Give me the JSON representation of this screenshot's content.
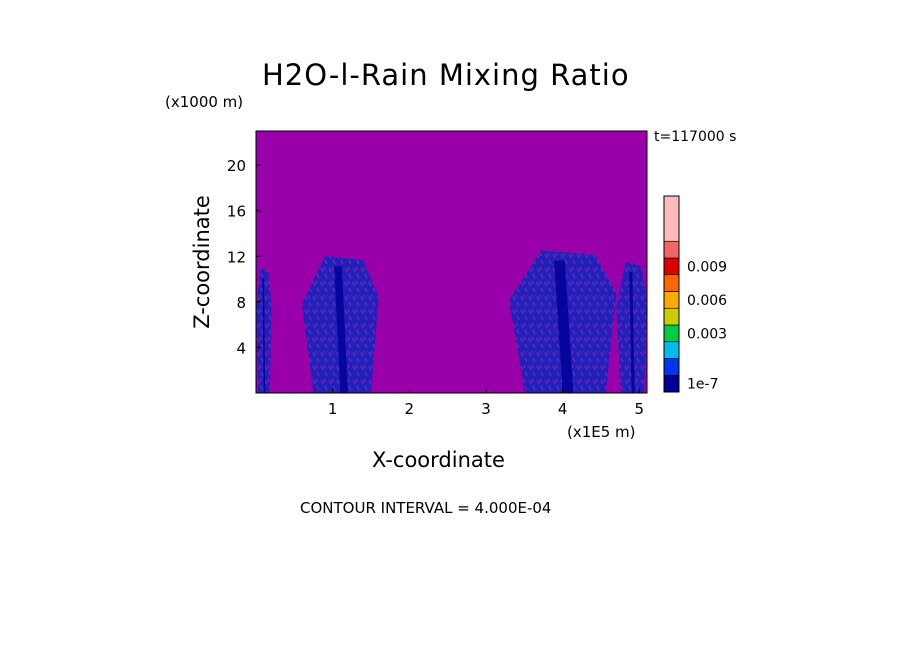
{
  "chart_data": {
    "type": "heatmap",
    "title": "H2O-l-Rain Mixing Ratio",
    "xlabel": "X-coordinate",
    "ylabel": "Z-coordinate",
    "x_unit_label": "(x1E5 m)",
    "y_unit_label": "(x1000 m)",
    "time_label": "t=117000 s",
    "annotation": "CONTOUR INTERVAL = 4.000E-04",
    "xlim": [
      0,
      5.1
    ],
    "ylim": [
      0,
      23
    ],
    "x_ticks": [
      1,
      2,
      3,
      4,
      5
    ],
    "y_ticks": [
      4,
      8,
      12,
      16,
      20
    ],
    "background_color": "#9900aa",
    "rain_regions": [
      {
        "x_start": 0.6,
        "x_end": 1.6,
        "z_top": 12,
        "intensity": "low"
      },
      {
        "x_start": 3.3,
        "x_end": 4.7,
        "z_top": 12.5,
        "intensity": "low"
      },
      {
        "x_start": 4.7,
        "x_end": 5.1,
        "z_top": 11.5,
        "intensity": "low"
      },
      {
        "x_start": 0.0,
        "x_end": 0.2,
        "z_top": 11,
        "intensity": "low"
      }
    ],
    "colorbar": {
      "levels_bottom_to_top": [
        "#000099",
        "#0033ee",
        "#00bbee",
        "#00cc44",
        "#cccc00",
        "#ffaa00",
        "#ff6600",
        "#dd0000",
        "#ee6666",
        "#ffbbbb"
      ],
      "tick_labels": [
        "1e-7",
        "0.003",
        "0.006",
        "0.009"
      ],
      "tick_level_index": [
        0,
        3,
        5,
        7
      ]
    }
  }
}
